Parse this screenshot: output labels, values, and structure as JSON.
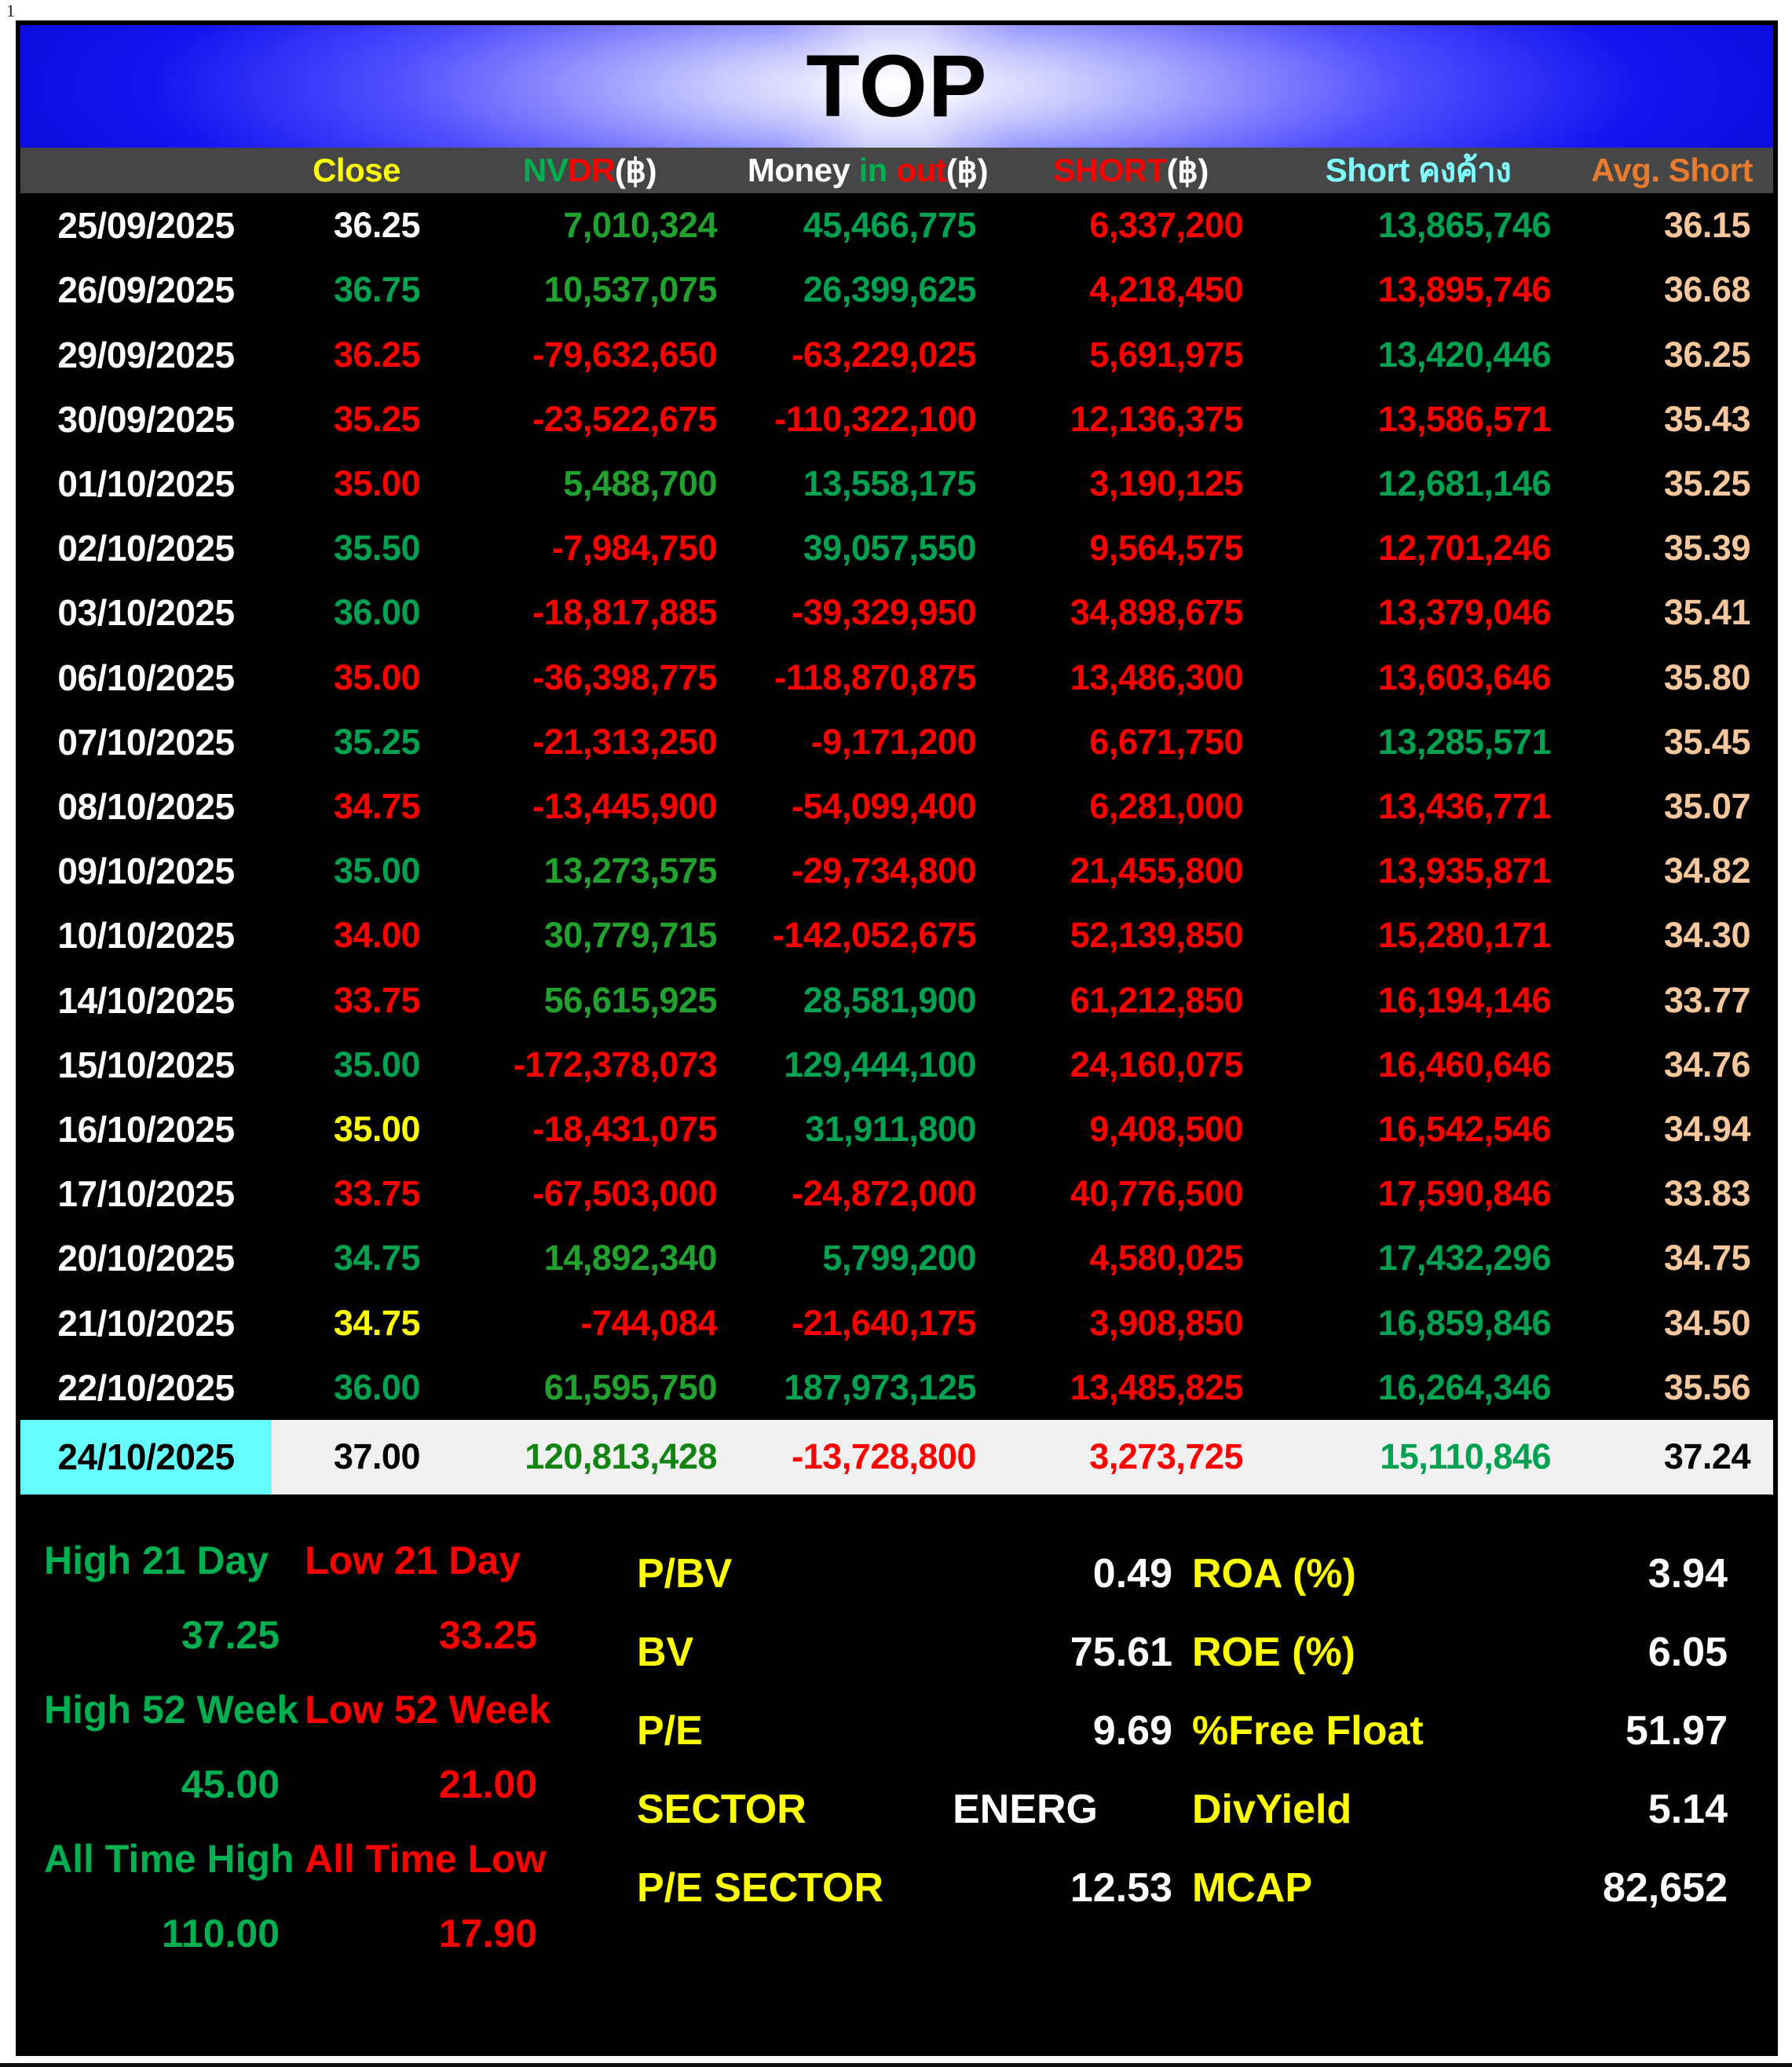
{
  "page_number": "1",
  "title": "TOP",
  "colors": {
    "banner_blue": "#1414F0",
    "header_bg": "#464646",
    "green": "#00A151",
    "nvdr_green": "#21A12E",
    "bright_green": "#00B050",
    "dark_green": "#128412",
    "red": "#FF0000",
    "yellow": "#FFFF00",
    "cyan_text": "#7FFFFF",
    "orange": "#E87B2E",
    "peach": "#F6C79C",
    "highlight_row_bg": "#F0F0F0",
    "highlight_date_bg": "#66FFFF"
  },
  "table": {
    "columns": {
      "close": {
        "label": "Close",
        "color": "yellow"
      },
      "nvdr": {
        "parts": [
          [
            "NV",
            "bgreen"
          ],
          [
            "DR",
            "red"
          ],
          [
            "(฿)",
            "white"
          ]
        ]
      },
      "money": {
        "parts": [
          [
            "Money ",
            "white"
          ],
          [
            "in",
            "bgreen"
          ],
          [
            " ",
            "white"
          ],
          [
            "out",
            "red"
          ],
          [
            "(฿)",
            "white"
          ]
        ]
      },
      "short": {
        "parts": [
          [
            "SHORT",
            "red"
          ],
          [
            "(฿)",
            "white"
          ]
        ]
      },
      "outstanding": {
        "label": "Short คงค้าง",
        "color": "cyan"
      },
      "avg": {
        "label": "Avg. Short",
        "color": "orange"
      }
    },
    "rows": [
      {
        "date": "25/09/2025",
        "close": [
          "36.25",
          "white"
        ],
        "nvdr": [
          "7,010,324",
          "green2"
        ],
        "money": [
          "45,466,775",
          "green"
        ],
        "short": [
          "6,337,200",
          "red"
        ],
        "out": [
          "13,865,746",
          "green"
        ],
        "avg": [
          "36.15",
          "peach"
        ],
        "highlight": false
      },
      {
        "date": "26/09/2025",
        "close": [
          "36.75",
          "green"
        ],
        "nvdr": [
          "10,537,075",
          "green2"
        ],
        "money": [
          "26,399,625",
          "green"
        ],
        "short": [
          "4,218,450",
          "red"
        ],
        "out": [
          "13,895,746",
          "red"
        ],
        "avg": [
          "36.68",
          "peach"
        ],
        "highlight": false
      },
      {
        "date": "29/09/2025",
        "close": [
          "36.25",
          "red"
        ],
        "nvdr": [
          "-79,632,650",
          "red"
        ],
        "money": [
          "-63,229,025",
          "red"
        ],
        "short": [
          "5,691,975",
          "red"
        ],
        "out": [
          "13,420,446",
          "green"
        ],
        "avg": [
          "36.25",
          "peach"
        ],
        "highlight": false
      },
      {
        "date": "30/09/2025",
        "close": [
          "35.25",
          "red"
        ],
        "nvdr": [
          "-23,522,675",
          "red"
        ],
        "money": [
          "-110,322,100",
          "red"
        ],
        "short": [
          "12,136,375",
          "red"
        ],
        "out": [
          "13,586,571",
          "red"
        ],
        "avg": [
          "35.43",
          "peach"
        ],
        "highlight": false
      },
      {
        "date": "01/10/2025",
        "close": [
          "35.00",
          "red"
        ],
        "nvdr": [
          "5,488,700",
          "green2"
        ],
        "money": [
          "13,558,175",
          "green"
        ],
        "short": [
          "3,190,125",
          "red"
        ],
        "out": [
          "12,681,146",
          "green"
        ],
        "avg": [
          "35.25",
          "peach"
        ],
        "highlight": false
      },
      {
        "date": "02/10/2025",
        "close": [
          "35.50",
          "green"
        ],
        "nvdr": [
          "-7,984,750",
          "red"
        ],
        "money": [
          "39,057,550",
          "green"
        ],
        "short": [
          "9,564,575",
          "red"
        ],
        "out": [
          "12,701,246",
          "red"
        ],
        "avg": [
          "35.39",
          "peach"
        ],
        "highlight": false
      },
      {
        "date": "03/10/2025",
        "close": [
          "36.00",
          "green"
        ],
        "nvdr": [
          "-18,817,885",
          "red"
        ],
        "money": [
          "-39,329,950",
          "red"
        ],
        "short": [
          "34,898,675",
          "red"
        ],
        "out": [
          "13,379,046",
          "red"
        ],
        "avg": [
          "35.41",
          "peach"
        ],
        "highlight": false
      },
      {
        "date": "06/10/2025",
        "close": [
          "35.00",
          "red"
        ],
        "nvdr": [
          "-36,398,775",
          "red"
        ],
        "money": [
          "-118,870,875",
          "red"
        ],
        "short": [
          "13,486,300",
          "red"
        ],
        "out": [
          "13,603,646",
          "red"
        ],
        "avg": [
          "35.80",
          "peach"
        ],
        "highlight": false
      },
      {
        "date": "07/10/2025",
        "close": [
          "35.25",
          "green"
        ],
        "nvdr": [
          "-21,313,250",
          "red"
        ],
        "money": [
          "-9,171,200",
          "red"
        ],
        "short": [
          "6,671,750",
          "red"
        ],
        "out": [
          "13,285,571",
          "green"
        ],
        "avg": [
          "35.45",
          "peach"
        ],
        "highlight": false
      },
      {
        "date": "08/10/2025",
        "close": [
          "34.75",
          "red"
        ],
        "nvdr": [
          "-13,445,900",
          "red"
        ],
        "money": [
          "-54,099,400",
          "red"
        ],
        "short": [
          "6,281,000",
          "red"
        ],
        "out": [
          "13,436,771",
          "red"
        ],
        "avg": [
          "35.07",
          "peach"
        ],
        "highlight": false
      },
      {
        "date": "09/10/2025",
        "close": [
          "35.00",
          "green"
        ],
        "nvdr": [
          "13,273,575",
          "green2"
        ],
        "money": [
          "-29,734,800",
          "red"
        ],
        "short": [
          "21,455,800",
          "red"
        ],
        "out": [
          "13,935,871",
          "red"
        ],
        "avg": [
          "34.82",
          "peach"
        ],
        "highlight": false
      },
      {
        "date": "10/10/2025",
        "close": [
          "34.00",
          "red"
        ],
        "nvdr": [
          "30,779,715",
          "green2"
        ],
        "money": [
          "-142,052,675",
          "red"
        ],
        "short": [
          "52,139,850",
          "red"
        ],
        "out": [
          "15,280,171",
          "red"
        ],
        "avg": [
          "34.30",
          "peach"
        ],
        "highlight": false
      },
      {
        "date": "14/10/2025",
        "close": [
          "33.75",
          "red"
        ],
        "nvdr": [
          "56,615,925",
          "green2"
        ],
        "money": [
          "28,581,900",
          "green"
        ],
        "short": [
          "61,212,850",
          "red"
        ],
        "out": [
          "16,194,146",
          "red"
        ],
        "avg": [
          "33.77",
          "peach"
        ],
        "highlight": false
      },
      {
        "date": "15/10/2025",
        "close": [
          "35.00",
          "green"
        ],
        "nvdr": [
          "-172,378,073",
          "red"
        ],
        "money": [
          "129,444,100",
          "green"
        ],
        "short": [
          "24,160,075",
          "red"
        ],
        "out": [
          "16,460,646",
          "red"
        ],
        "avg": [
          "34.76",
          "peach"
        ],
        "highlight": false
      },
      {
        "date": "16/10/2025",
        "close": [
          "35.00",
          "yellow"
        ],
        "nvdr": [
          "-18,431,075",
          "red"
        ],
        "money": [
          "31,911,800",
          "green"
        ],
        "short": [
          "9,408,500",
          "red"
        ],
        "out": [
          "16,542,546",
          "red"
        ],
        "avg": [
          "34.94",
          "peach"
        ],
        "highlight": false
      },
      {
        "date": "17/10/2025",
        "close": [
          "33.75",
          "red"
        ],
        "nvdr": [
          "-67,503,000",
          "red"
        ],
        "money": [
          "-24,872,000",
          "red"
        ],
        "short": [
          "40,776,500",
          "red"
        ],
        "out": [
          "17,590,846",
          "red"
        ],
        "avg": [
          "33.83",
          "peach"
        ],
        "highlight": false
      },
      {
        "date": "20/10/2025",
        "close": [
          "34.75",
          "green"
        ],
        "nvdr": [
          "14,892,340",
          "green2"
        ],
        "money": [
          "5,799,200",
          "green"
        ],
        "short": [
          "4,580,025",
          "red"
        ],
        "out": [
          "17,432,296",
          "green"
        ],
        "avg": [
          "34.75",
          "peach"
        ],
        "highlight": false
      },
      {
        "date": "21/10/2025",
        "close": [
          "34.75",
          "yellow"
        ],
        "nvdr": [
          "-744,084",
          "red"
        ],
        "money": [
          "-21,640,175",
          "red"
        ],
        "short": [
          "3,908,850",
          "red"
        ],
        "out": [
          "16,859,846",
          "green"
        ],
        "avg": [
          "34.50",
          "peach"
        ],
        "highlight": false
      },
      {
        "date": "22/10/2025",
        "close": [
          "36.00",
          "green"
        ],
        "nvdr": [
          "61,595,750",
          "green2"
        ],
        "money": [
          "187,973,125",
          "green"
        ],
        "short": [
          "13,485,825",
          "red"
        ],
        "out": [
          "16,264,346",
          "green"
        ],
        "avg": [
          "35.56",
          "peach"
        ],
        "highlight": false
      },
      {
        "date": "24/10/2025",
        "close": [
          "37.00",
          "black"
        ],
        "nvdr": [
          "120,813,428",
          "darkgreen"
        ],
        "money": [
          "-13,728,800",
          "red"
        ],
        "short": [
          "3,273,725",
          "red"
        ],
        "out": [
          "15,110,846",
          "green"
        ],
        "avg": [
          "37.24",
          "black"
        ],
        "highlight": true
      }
    ]
  },
  "summary": {
    "ranges": [
      {
        "high_label": "High 21 Day",
        "high_value": "37.25",
        "low_label": "Low 21 Day",
        "low_value": "33.25"
      },
      {
        "high_label": "High 52 Week",
        "high_value": "45.00",
        "low_label": "Low 52 Week",
        "low_value": "21.00"
      },
      {
        "high_label": "All Time High",
        "high_value": "110.00",
        "low_label": "All Time Low",
        "low_value": "17.90"
      }
    ],
    "valuation": [
      {
        "label": "P/BV",
        "value": "0.49"
      },
      {
        "label": "BV",
        "value": "75.61"
      },
      {
        "label": "P/E",
        "value": "9.69"
      },
      {
        "label": "SECTOR",
        "value": "ENERG",
        "indent_right": 95
      },
      {
        "label": "P/E SECTOR",
        "value": "12.53"
      }
    ],
    "ratios": [
      {
        "label": "ROA (%)",
        "value": "3.94"
      },
      {
        "label": "ROE (%)",
        "value": "6.05"
      },
      {
        "label": "%Free Float",
        "value": "51.97"
      },
      {
        "label": "DivYield",
        "value": "5.14"
      },
      {
        "label": "MCAP",
        "value": "82,652"
      }
    ]
  }
}
